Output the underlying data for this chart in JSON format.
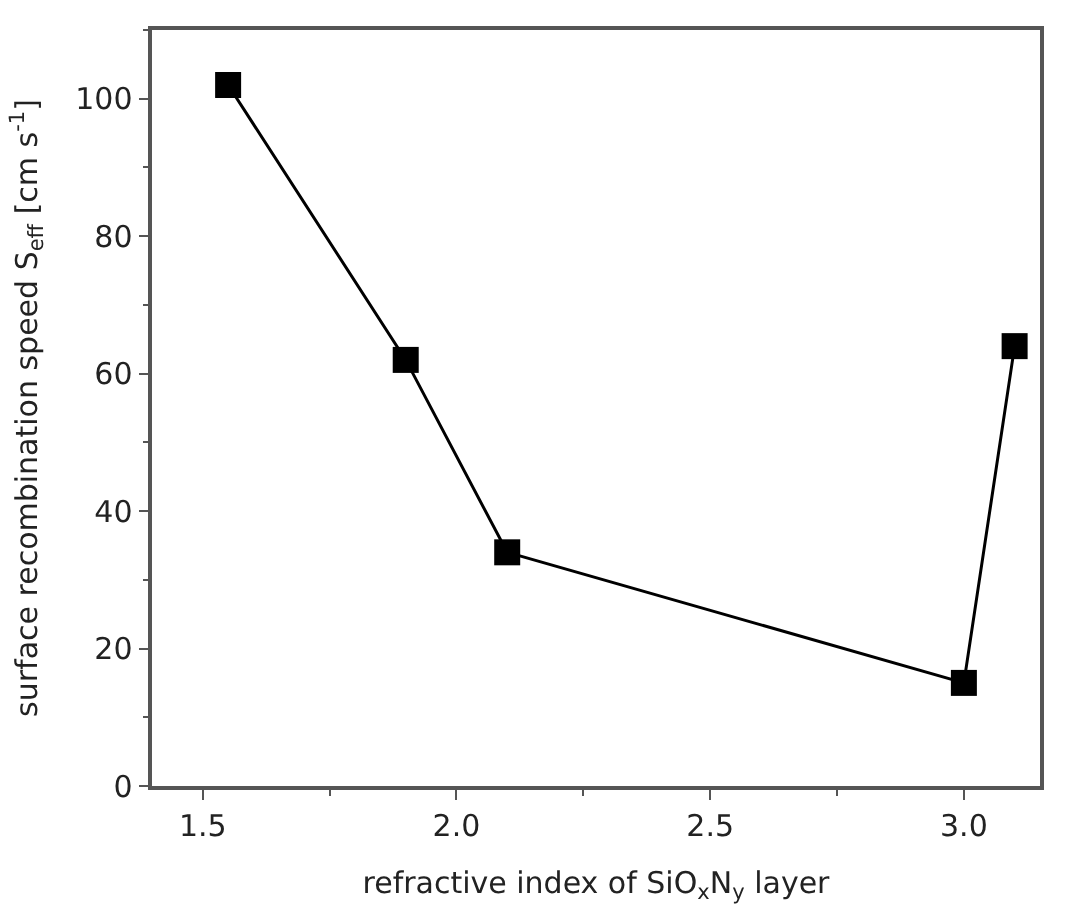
{
  "chart_data": {
    "type": "line",
    "xlabel": "refractive index of SiO$_{x}$N$_{y}$ layer",
    "ylabel": "surface recombination speed S$_{eff}$ [cm s$^{-1}$]",
    "x": [
      1.55,
      1.9,
      2.1,
      3.0,
      3.1
    ],
    "series": [
      {
        "color": "#000000",
        "values": [
          102,
          62,
          34,
          15,
          64
        ]
      }
    ],
    "xlim": [
      1.4,
      3.15
    ],
    "xticks": [
      {
        "value": 1.5,
        "label": "1.5"
      },
      {
        "value": 2.0,
        "label": "2.0"
      },
      {
        "value": 2.5,
        "label": "2.5"
      },
      {
        "value": 3.0,
        "label": "3.0"
      }
    ],
    "ylim": [
      0,
      110
    ],
    "yticks": [
      0,
      20,
      40,
      60,
      80,
      100
    ],
    "marker": "square",
    "line_style": "solid"
  }
}
